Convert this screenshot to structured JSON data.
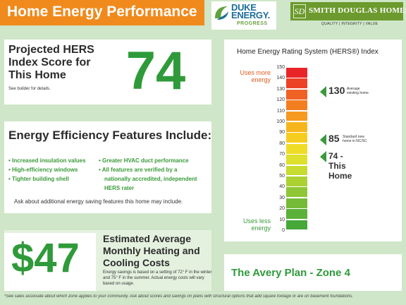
{
  "header": {
    "title": "Home Energy Performance"
  },
  "duke": {
    "line1": "DUKE",
    "line2": "ENERGY.",
    "line3": "PROGRESS"
  },
  "smith_douglas": {
    "logo_letters": "SD",
    "name": "SMITH DOUGLAS HOMES",
    "tagline": "QUALITY | INTEGRITY | VALUE"
  },
  "hers_score": {
    "title_lines": [
      "Projected HERS",
      "Index Score for",
      "This Home"
    ],
    "note": "See builder for details.",
    "value": "74"
  },
  "features": {
    "title": "Energy Efficiency Features Include:",
    "col1": [
      "Increased insulation values",
      "High-efficiency windows",
      "Tighter building shell"
    ],
    "col2": [
      "Greater HVAC duct performance",
      "All features are verified by a"
    ],
    "col2_cont": [
      "nationally accredited, independent",
      "HERS rater"
    ],
    "ask": "Ask about additional energy saving features this home may include."
  },
  "cost": {
    "value": "$47",
    "title_lines": [
      "Estimated Average",
      "Monthly Heating and",
      "Cooling Costs"
    ],
    "note": "Energy savings is based on a setting of 72° F in the winter and 75° F in the summer. Actual energy costs will vary based on usage."
  },
  "rating": {
    "title": "Home Energy Rating System (HERS®) Index",
    "uses_more": [
      "Uses more",
      "energy"
    ],
    "uses_less": [
      "Uses less",
      "energy"
    ],
    "ticks": [
      "150",
      "140",
      "130",
      "120",
      "110",
      "100",
      "90",
      "80",
      "70",
      "60",
      "50",
      "40",
      "30",
      "20",
      "10",
      "0"
    ],
    "markers": {
      "existing": {
        "value": "130",
        "label_lines": [
          "Average",
          "existing home"
        ]
      },
      "standard": {
        "value": "85",
        "label_lines": [
          "Standard new",
          "home in NC/SC"
        ]
      },
      "this_home": {
        "label": "74 - This Home"
      }
    },
    "colors": {
      "high": "#e8262a",
      "low": "#3daa3a",
      "arrow": "#3a9a3a"
    }
  },
  "plan": {
    "label": "The Avery Plan - Zone 4"
  },
  "footnote": "*See sales associate about which zone applies to your community.  Ask about scores and savings on plans with structural options that add square footage or are on basement foundations."
}
